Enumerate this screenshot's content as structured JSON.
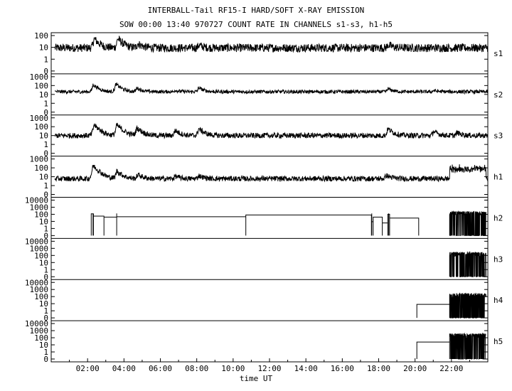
{
  "title": "INTERBALL-Tail RF15-I HARD/SOFT X-RAY EMISSION",
  "subtitle": "SOW 00:00 13:40 970727  COUNT RATE IN CHANNELS s1-s3, h1-h5",
  "chart_data": {
    "type": "line",
    "title": "INTERBALL-Tail RF15-I HARD/SOFT X-RAY EMISSION",
    "subtitle": "SOW 00:00 13:40 970727  COUNT RATE IN CHANNELS s1-s3, h1-h5",
    "xlabel": "time UT",
    "x_range_hours": [
      0,
      24
    ],
    "x_ticks": [
      "02:00",
      "04:00",
      "06:00",
      "08:00",
      "10:00",
      "12:00",
      "14:00",
      "16:00",
      "18:00",
      "20:00",
      "22:00"
    ],
    "y_scale": "log",
    "grid": false,
    "panels": [
      {
        "name": "s1",
        "y_ticks": [
          "100",
          "10",
          "1",
          "0"
        ],
        "baseline": 9,
        "noise": 0.35,
        "events": [
          [
            2.35,
            55
          ],
          [
            3.65,
            58
          ],
          [
            4.75,
            22
          ],
          [
            8.1,
            16
          ],
          [
            18.5,
            17
          ]
        ]
      },
      {
        "name": "s2",
        "y_ticks": [
          "1000",
          "100",
          "10",
          "1",
          "0"
        ],
        "baseline": 20,
        "noise": 0.2,
        "events": [
          [
            2.3,
            130
          ],
          [
            3.55,
            150
          ],
          [
            4.7,
            55
          ],
          [
            6.8,
            30
          ],
          [
            8.1,
            60
          ],
          [
            18.5,
            45
          ],
          [
            21.0,
            28
          ]
        ]
      },
      {
        "name": "s3",
        "y_ticks": [
          "1000",
          "100",
          "10",
          "1",
          "0"
        ],
        "baseline": 10,
        "noise": 0.3,
        "events": [
          [
            2.35,
            160
          ],
          [
            3.6,
            160
          ],
          [
            4.7,
            75
          ],
          [
            6.8,
            40
          ],
          [
            8.1,
            60
          ],
          [
            18.5,
            60
          ],
          [
            21.0,
            30
          ],
          [
            22.3,
            22
          ]
        ]
      },
      {
        "name": "h1",
        "y_ticks": [
          "1000",
          "100",
          "10",
          "1",
          "0"
        ],
        "baseline": 6,
        "noise": 0.3,
        "events": [
          [
            2.3,
            180
          ],
          [
            3.6,
            45
          ],
          [
            4.75,
            18
          ],
          [
            6.8,
            12
          ],
          [
            8.1,
            14
          ],
          [
            18.4,
            15
          ]
        ],
        "burst": {
          "start": 21.9,
          "end": 23.9,
          "level": 130
        }
      },
      {
        "name": "h2",
        "y_ticks": [
          "10000",
          "1000",
          "100",
          "10",
          "1",
          "0"
        ],
        "steps": [
          [
            2.2,
            2.3,
            120
          ],
          [
            2.3,
            2.9,
            55
          ],
          [
            2.9,
            3.6,
            40
          ],
          [
            3.6,
            10.7,
            45
          ],
          [
            10.7,
            17.6,
            80
          ],
          [
            17.6,
            17.7,
            9
          ],
          [
            17.7,
            18.2,
            40
          ],
          [
            18.2,
            18.5,
            6
          ],
          [
            18.5,
            18.6,
            100
          ],
          [
            18.6,
            20.2,
            30
          ]
        ],
        "spikes": [
          2.2,
          2.32,
          3.6,
          17.62,
          18.55
        ],
        "burst": {
          "start": 21.9,
          "end": 23.9,
          "level": 260
        }
      },
      {
        "name": "h3",
        "y_ticks": [
          "10000",
          "1000",
          "100",
          "10",
          "1",
          "0"
        ],
        "steps": [],
        "spikes": [],
        "burst": {
          "start": 21.9,
          "end": 23.9,
          "level": 300
        }
      },
      {
        "name": "h4",
        "y_ticks": [
          "10000",
          "1000",
          "100",
          "10",
          "1",
          "0"
        ],
        "steps": [
          [
            20.1,
            21.9,
            8
          ]
        ],
        "spikes": [],
        "burst": {
          "start": 21.9,
          "end": 23.9,
          "level": 300
        }
      },
      {
        "name": "h5",
        "y_ticks": [
          "10000",
          "1000",
          "100",
          "10",
          "1",
          "0"
        ],
        "steps": [
          [
            20.1,
            21.9,
            25
          ]
        ],
        "spikes": [],
        "burst": {
          "start": 21.9,
          "end": 23.9,
          "level": 400
        }
      }
    ]
  }
}
